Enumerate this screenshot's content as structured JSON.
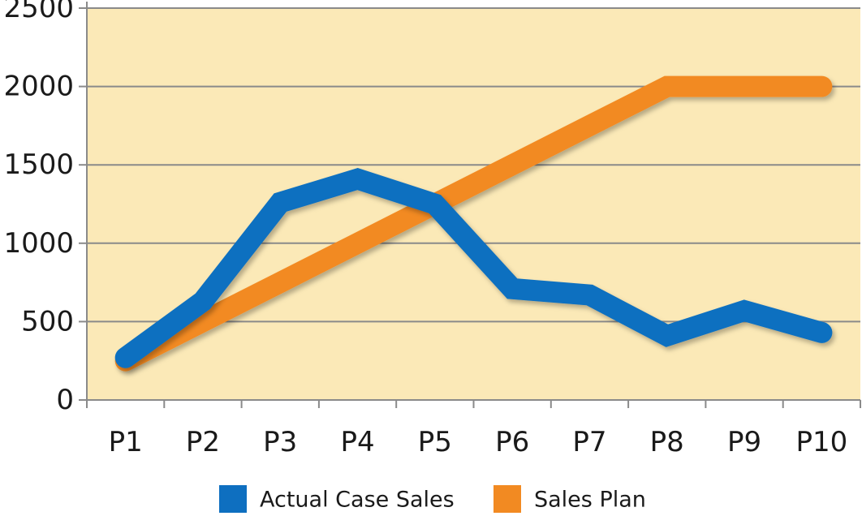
{
  "chart_data": {
    "type": "line",
    "title": "",
    "xlabel": "",
    "ylabel": "",
    "categories": [
      "P1",
      "P2",
      "P3",
      "P4",
      "P5",
      "P6",
      "P7",
      "P8",
      "P9",
      "P10"
    ],
    "y_ticks": [
      "0",
      "500",
      "1000",
      "1500",
      "2000",
      "2500"
    ],
    "ylim": [
      0,
      2500
    ],
    "grid": "horizontal",
    "legend_position": "bottom",
    "plot_background": "#fbe9b7",
    "series": [
      {
        "name": "Actual Case Sales",
        "color": "#0e6fc0",
        "values": [
          270,
          630,
          1260,
          1410,
          1250,
          710,
          670,
          410,
          570,
          430
        ]
      },
      {
        "name": "Sales Plan",
        "color": "#f28a22",
        "values": [
          250,
          500,
          750,
          1000,
          1250,
          1500,
          1750,
          2000,
          2000,
          2000
        ]
      }
    ]
  }
}
